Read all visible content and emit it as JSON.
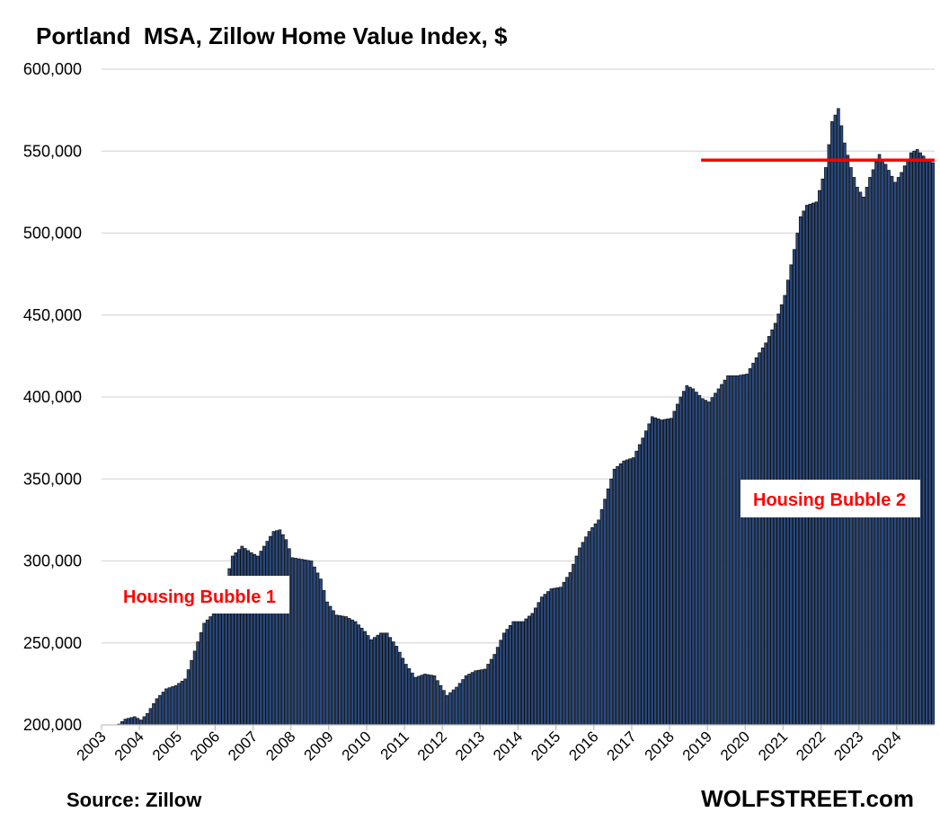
{
  "chart_data": {
    "type": "bar",
    "title": "Portland  MSA, Zillow Home Value Index, $",
    "xlabel": "",
    "ylabel": "",
    "ylim": [
      200000,
      600000
    ],
    "yticks": [
      200000,
      250000,
      300000,
      350000,
      400000,
      450000,
      500000,
      550000,
      600000
    ],
    "ytick_labels": [
      "200,000",
      "250,000",
      "300,000",
      "350,000",
      "400,000",
      "450,000",
      "500,000",
      "550,000",
      "600,000"
    ],
    "xtick_labels": [
      "2003",
      "2004",
      "2005",
      "2006",
      "2007",
      "2008",
      "2009",
      "2010",
      "2011",
      "2012",
      "2013",
      "2014",
      "2015",
      "2016",
      "2017",
      "2018",
      "2019",
      "2020",
      "2021",
      "2022",
      "2023",
      "2024"
    ],
    "x_start": "2003-01",
    "x_end": "2024-12",
    "grid": true,
    "bar_color": "#2a4a7f",
    "bar_edge_color": "#111111",
    "anchors": [
      [
        "2003-06",
        200500
      ],
      [
        "2003-08",
        203500
      ],
      [
        "2003-11",
        205000
      ],
      [
        "2004-01",
        203000
      ],
      [
        "2004-03",
        207000
      ],
      [
        "2004-06",
        216000
      ],
      [
        "2004-09",
        222000
      ],
      [
        "2004-12",
        224000
      ],
      [
        "2005-03",
        228000
      ],
      [
        "2005-06",
        245000
      ],
      [
        "2005-09",
        262000
      ],
      [
        "2005-12",
        268000
      ],
      [
        "2006-03",
        280000
      ],
      [
        "2006-06",
        303000
      ],
      [
        "2006-09",
        309000
      ],
      [
        "2006-12",
        305000
      ],
      [
        "2007-02",
        303000
      ],
      [
        "2007-04",
        309000
      ],
      [
        "2007-07",
        318000
      ],
      [
        "2007-09",
        319000
      ],
      [
        "2007-11",
        313000
      ],
      [
        "2008-01",
        302000
      ],
      [
        "2008-04",
        301000
      ],
      [
        "2008-07",
        300000
      ],
      [
        "2008-10",
        289000
      ],
      [
        "2008-12",
        275000
      ],
      [
        "2009-03",
        267000
      ],
      [
        "2009-06",
        266000
      ],
      [
        "2009-09",
        263000
      ],
      [
        "2009-12",
        257000
      ],
      [
        "2010-02",
        252000
      ],
      [
        "2010-05",
        256000
      ],
      [
        "2010-07",
        256000
      ],
      [
        "2010-10",
        248000
      ],
      [
        "2011-01",
        237000
      ],
      [
        "2011-04",
        229000
      ],
      [
        "2011-07",
        231000
      ],
      [
        "2011-10",
        230000
      ],
      [
        "2011-12",
        224000
      ],
      [
        "2012-02",
        218000
      ],
      [
        "2012-05",
        223000
      ],
      [
        "2012-08",
        230000
      ],
      [
        "2012-11",
        233000
      ],
      [
        "2013-02",
        234000
      ],
      [
        "2013-05",
        243000
      ],
      [
        "2013-08",
        256000
      ],
      [
        "2013-11",
        263000
      ],
      [
        "2014-02",
        263000
      ],
      [
        "2014-05",
        268000
      ],
      [
        "2014-08",
        278000
      ],
      [
        "2014-11",
        283000
      ],
      [
        "2015-02",
        284000
      ],
      [
        "2015-05",
        293000
      ],
      [
        "2015-08",
        308000
      ],
      [
        "2015-11",
        318000
      ],
      [
        "2016-02",
        325000
      ],
      [
        "2016-05",
        344000
      ],
      [
        "2016-07",
        356000
      ],
      [
        "2016-10",
        361000
      ],
      [
        "2017-01",
        363000
      ],
      [
        "2017-04",
        375000
      ],
      [
        "2017-07",
        388000
      ],
      [
        "2017-10",
        386000
      ],
      [
        "2018-01",
        387000
      ],
      [
        "2018-04",
        400000
      ],
      [
        "2018-06",
        407000
      ],
      [
        "2018-08",
        405000
      ],
      [
        "2018-11",
        399000
      ],
      [
        "2019-01",
        397000
      ],
      [
        "2019-04",
        405000
      ],
      [
        "2019-07",
        413000
      ],
      [
        "2019-10",
        413000
      ],
      [
        "2020-01",
        414000
      ],
      [
        "2020-04",
        424000
      ],
      [
        "2020-07",
        433000
      ],
      [
        "2020-10",
        445000
      ],
      [
        "2021-01",
        462000
      ],
      [
        "2021-04",
        490000
      ],
      [
        "2021-06",
        510000
      ],
      [
        "2021-08",
        517000
      ],
      [
        "2021-11",
        519000
      ],
      [
        "2022-02",
        540000
      ],
      [
        "2022-04",
        568000
      ],
      [
        "2022-06",
        576000
      ],
      [
        "2022-08",
        555000
      ],
      [
        "2022-10",
        540000
      ],
      [
        "2022-12",
        528000
      ],
      [
        "2023-02",
        522000
      ],
      [
        "2023-04",
        534000
      ],
      [
        "2023-07",
        548000
      ],
      [
        "2023-09",
        542000
      ],
      [
        "2023-12",
        531000
      ],
      [
        "2024-02",
        537000
      ],
      [
        "2024-05",
        549000
      ],
      [
        "2024-07",
        551000
      ],
      [
        "2024-10",
        545000
      ],
      [
        "2024-12",
        543000
      ]
    ],
    "reference_line": {
      "value": 544500,
      "from": "2018-11",
      "to": "2024-12",
      "color": "#ff0000"
    },
    "annotations": [
      "Housing Bubble 1",
      "Housing Bubble 2"
    ],
    "annotation_color": "#ff0000"
  },
  "footer": {
    "source": "Source: Zillow",
    "brand": "WOLFSTREET.com"
  }
}
